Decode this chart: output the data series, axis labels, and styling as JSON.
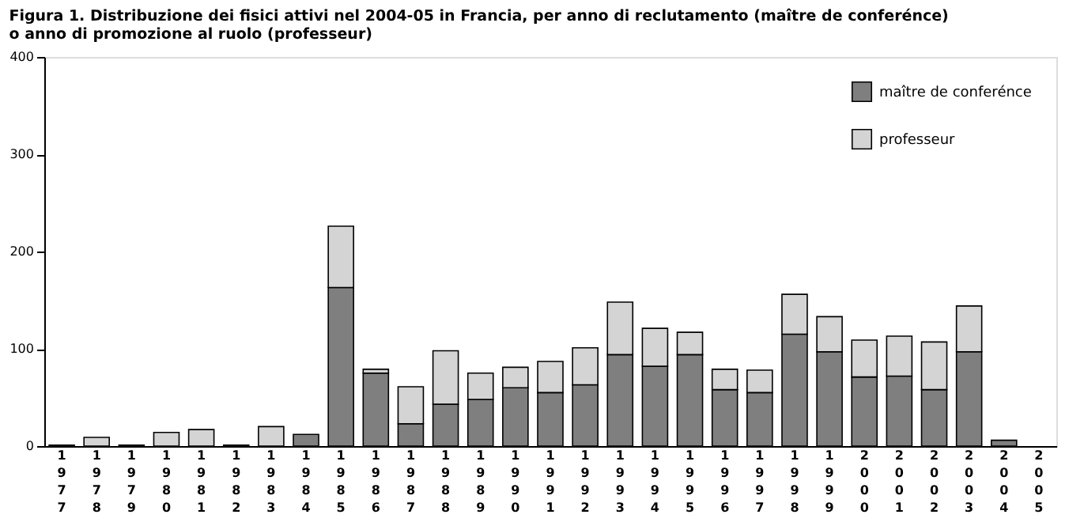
{
  "chart_data": {
    "type": "bar",
    "title": "Figura 1.    Distribuzione dei fisici attivi nel 2004-05 in Francia, per anno di reclutamento (maître de conferénce)\no anno di promozione al ruolo (professeur)",
    "categories": [
      "1977",
      "1978",
      "1979",
      "1980",
      "1981",
      "1982",
      "1983",
      "1984",
      "1985",
      "1986",
      "1987",
      "1988",
      "1989",
      "1990",
      "1991",
      "1992",
      "1993",
      "1994",
      "1995",
      "1996",
      "1997",
      "1998",
      "1999",
      "2000",
      "2001",
      "2002",
      "2003",
      "2004",
      "2005"
    ],
    "stacked": true,
    "series": [
      {
        "name": "maître de conferénce",
        "color": "#7f7f7f",
        "values": [
          null,
          null,
          null,
          null,
          null,
          null,
          null,
          12,
          163,
          75,
          23,
          43,
          48,
          60,
          55,
          63,
          94,
          82,
          94,
          58,
          55,
          115,
          97,
          71,
          72,
          58,
          97,
          6,
          null
        ]
      },
      {
        "name": "professeur",
        "color": "#d4d4d4",
        "values": [
          1,
          9,
          1,
          14,
          17,
          1,
          20,
          null,
          63,
          4,
          38,
          55,
          27,
          21,
          32,
          38,
          54,
          39,
          23,
          21,
          23,
          41,
          36,
          38,
          41,
          49,
          47,
          null,
          null
        ]
      }
    ],
    "ylim": [
      0,
      400
    ],
    "yticks": [
      0,
      100,
      200,
      300,
      400
    ],
    "grid": false,
    "legend": "top right"
  }
}
